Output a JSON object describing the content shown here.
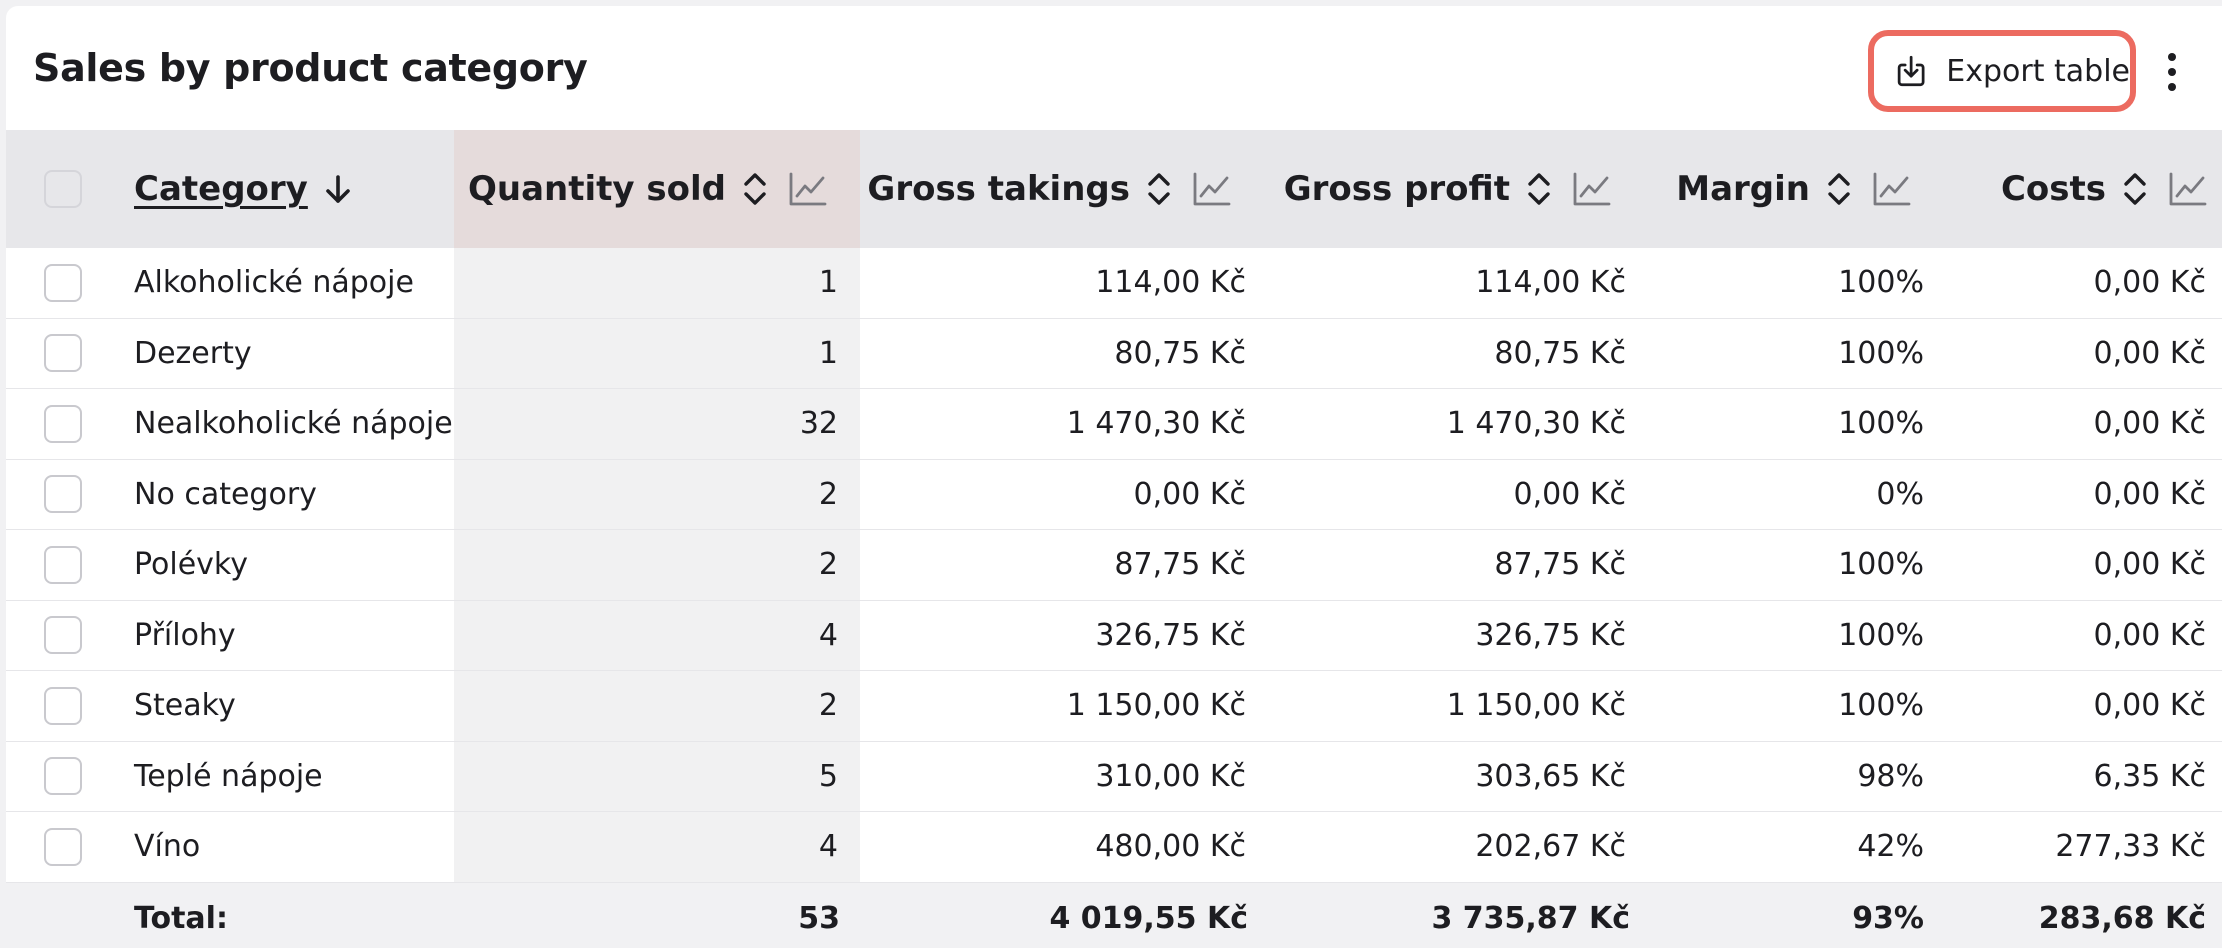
{
  "header": {
    "title": "Sales by product category",
    "export_label": "Export table"
  },
  "table": {
    "columns": [
      {
        "key": "category",
        "label": "Category"
      },
      {
        "key": "quantity",
        "label": "Quantity sold"
      },
      {
        "key": "gross_takings",
        "label": "Gross takings"
      },
      {
        "key": "gross_profit",
        "label": "Gross profit"
      },
      {
        "key": "margin",
        "label": "Margin"
      },
      {
        "key": "costs",
        "label": "Costs"
      }
    ],
    "rows": [
      {
        "category": "Alkoholické nápoje",
        "quantity": "1",
        "gross_takings": "114,00 Kč",
        "gross_profit": "114,00 Kč",
        "margin": "100%",
        "costs": "0,00 Kč"
      },
      {
        "category": "Dezerty",
        "quantity": "1",
        "gross_takings": "80,75 Kč",
        "gross_profit": "80,75 Kč",
        "margin": "100%",
        "costs": "0,00 Kč"
      },
      {
        "category": "Nealkoholické nápoje",
        "quantity": "32",
        "gross_takings": "1 470,30 Kč",
        "gross_profit": "1 470,30 Kč",
        "margin": "100%",
        "costs": "0,00 Kč"
      },
      {
        "category": "No category",
        "quantity": "2",
        "gross_takings": "0,00 Kč",
        "gross_profit": "0,00 Kč",
        "margin": "0%",
        "costs": "0,00 Kč"
      },
      {
        "category": "Polévky",
        "quantity": "2",
        "gross_takings": "87,75 Kč",
        "gross_profit": "87,75 Kč",
        "margin": "100%",
        "costs": "0,00 Kč"
      },
      {
        "category": "Přílohy",
        "quantity": "4",
        "gross_takings": "326,75 Kč",
        "gross_profit": "326,75 Kč",
        "margin": "100%",
        "costs": "0,00 Kč"
      },
      {
        "category": "Steaky",
        "quantity": "2",
        "gross_takings": "1 150,00 Kč",
        "gross_profit": "1 150,00 Kč",
        "margin": "100%",
        "costs": "0,00 Kč"
      },
      {
        "category": "Teplé nápoje",
        "quantity": "5",
        "gross_takings": "310,00 Kč",
        "gross_profit": "303,65 Kč",
        "margin": "98%",
        "costs": "6,35 Kč"
      },
      {
        "category": "Víno",
        "quantity": "4",
        "gross_takings": "480,00 Kč",
        "gross_profit": "202,67 Kč",
        "margin": "42%",
        "costs": "277,33 Kč"
      }
    ],
    "total": {
      "category": "Total:",
      "quantity": "53",
      "gross_takings": "4 019,55 Kč",
      "gross_profit": "3 735,87 Kč",
      "margin": "93%",
      "costs": "283,68 Kč"
    }
  },
  "colors": {
    "accent": "#ec6b60",
    "header_bg": "#e7e7ea",
    "highlight_header_bg": "#e5dbdb",
    "highlight_cell_bg": "#f1f1f2"
  },
  "icons": {
    "export": "download-icon",
    "more": "more-vertical-icon",
    "sort": "sort-icon",
    "chart": "chart-icon",
    "sort_desc": "arrow-down-icon"
  }
}
